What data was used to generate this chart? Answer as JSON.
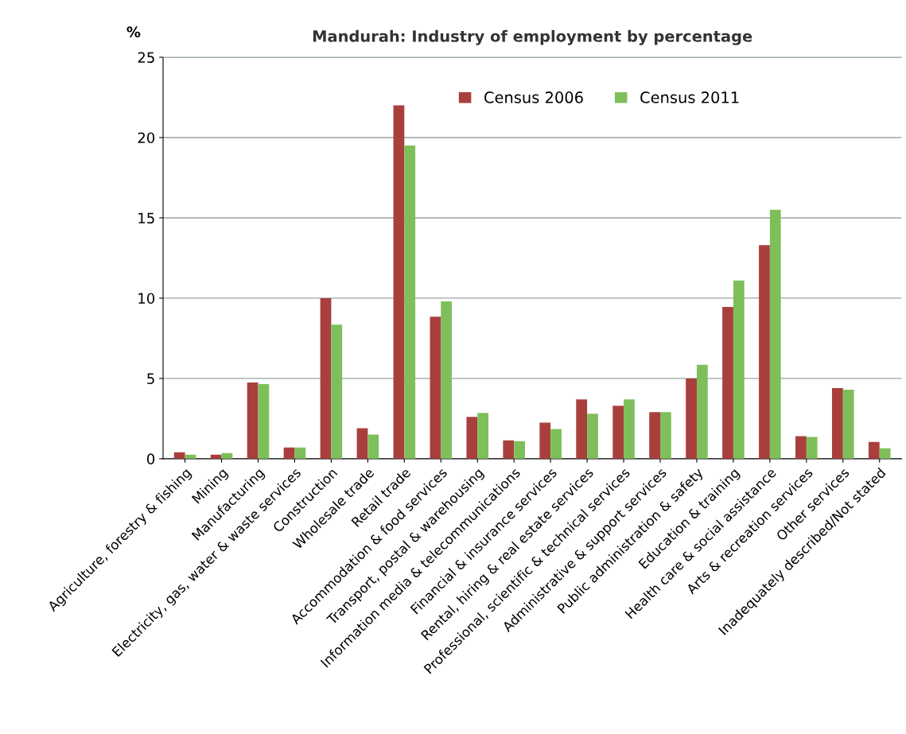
{
  "chart_data": {
    "type": "bar",
    "title": "Mandurah: Industry of employment by percentage",
    "ylabel": "%",
    "categories": [
      "Agriculture, forestry & fishing",
      "Mining",
      "Manufacturing",
      "Electricity, gas, water & waste services",
      "Construction",
      "Wholesale trade",
      "Retail trade",
      "Accommodation & food services",
      "Transport, postal & warehousing",
      "Information media & telecommunications",
      "Financial & insurance services",
      "Rental, hiring & real estate services",
      "Professional, scientific & technical services",
      "Administrative & support services",
      "Public administration & safety",
      "Education & training",
      "Health care & social assistance",
      "Arts & recreation services",
      "Other services",
      "Inadequately described/Not stated"
    ],
    "series": [
      {
        "name": "Census 2006",
        "color": "#a93f3d",
        "values": [
          0.4,
          0.25,
          4.75,
          0.7,
          10.0,
          1.9,
          22.0,
          8.85,
          2.6,
          1.15,
          2.25,
          3.7,
          3.3,
          2.9,
          5.0,
          9.45,
          13.3,
          1.4,
          4.4,
          1.05
        ]
      },
      {
        "name": "Census 2011",
        "color": "#7fbf5b",
        "values": [
          0.25,
          0.35,
          4.65,
          0.7,
          8.35,
          1.5,
          19.5,
          9.8,
          2.85,
          1.1,
          1.85,
          2.8,
          3.7,
          2.9,
          5.85,
          11.1,
          15.5,
          1.35,
          4.3,
          0.65
        ]
      }
    ],
    "ylim": [
      0,
      25
    ],
    "yticks": [
      0,
      5,
      10,
      15,
      20,
      25
    ],
    "grid": "y",
    "legend": "top right"
  }
}
